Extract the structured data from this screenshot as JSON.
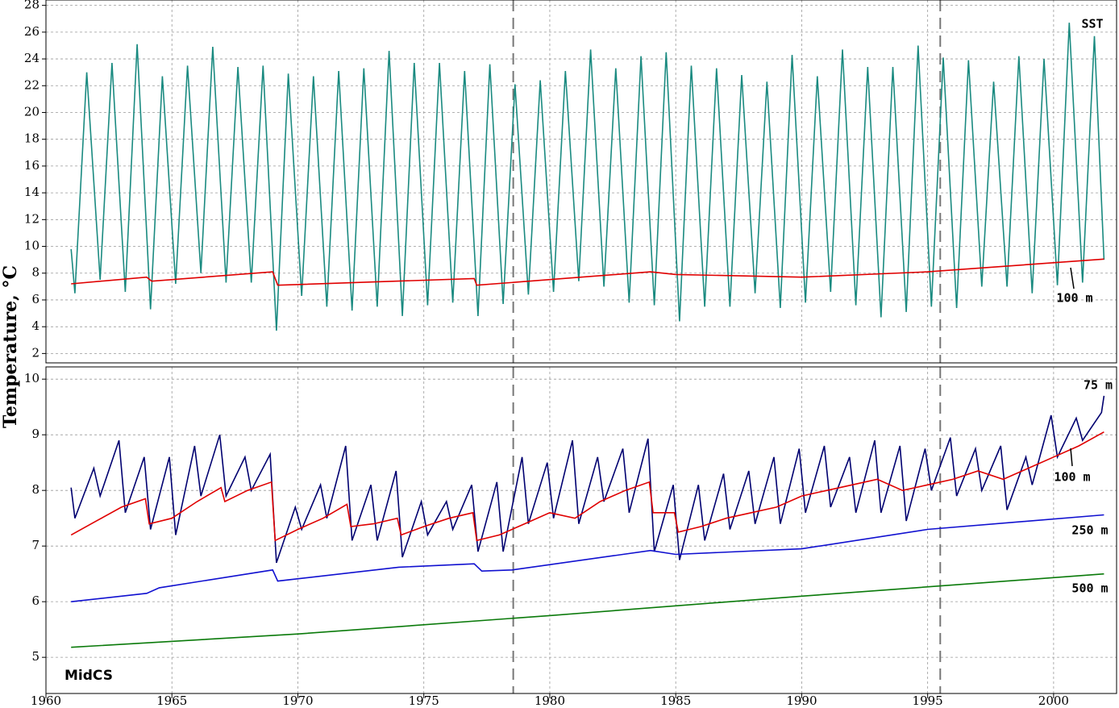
{
  "y_label": "Temperature, °C",
  "xlim": [
    1960,
    2002.5
  ],
  "xticks": [
    1960,
    1965,
    1970,
    1975,
    1980,
    1985,
    1990,
    1995,
    2000
  ],
  "reference_lines": [
    1978.55,
    1995.5
  ],
  "chart_data": [
    {
      "type": "line",
      "ylim": [
        1.3,
        28.4
      ],
      "yticks": [
        2,
        4,
        6,
        8,
        10,
        12,
        14,
        16,
        18,
        20,
        22,
        24,
        26,
        28
      ],
      "grid": true,
      "series": [
        {
          "name": "SST",
          "color": "#1a8a80",
          "x": [
            1961,
            1961.15,
            1961.62,
            1962.15,
            1962.62,
            1963.15,
            1963.62,
            1964.15,
            1964.62,
            1965.15,
            1965.62,
            1966.15,
            1966.62,
            1967.15,
            1967.62,
            1968.15,
            1968.62,
            1969.15,
            1969.62,
            1970.15,
            1970.62,
            1971.15,
            1971.62,
            1972.15,
            1972.62,
            1973.15,
            1973.62,
            1974.15,
            1974.62,
            1975.15,
            1975.62,
            1976.15,
            1976.62,
            1977.15,
            1977.62,
            1978.15,
            1978.62,
            1979.15,
            1979.62,
            1980.15,
            1980.62,
            1981.15,
            1981.62,
            1982.15,
            1982.62,
            1983.15,
            1983.62,
            1984.15,
            1984.62,
            1985.15,
            1985.62,
            1986.15,
            1986.62,
            1987.15,
            1987.62,
            1988.15,
            1988.62,
            1989.15,
            1989.62,
            1990.15,
            1990.62,
            1991.15,
            1991.62,
            1992.15,
            1992.62,
            1993.15,
            1993.62,
            1994.15,
            1994.62,
            1995.15,
            1995.62,
            1996.15,
            1996.62,
            1997.15,
            1997.62,
            1998.15,
            1998.62,
            1999.15,
            1999.62,
            2000.15,
            2000.62,
            2001.15,
            2001.62,
            2002
          ],
          "values": [
            9.8,
            6.5,
            23,
            7.5,
            23.7,
            6.6,
            25.1,
            5.3,
            22.7,
            7.2,
            23.5,
            8.0,
            24.9,
            7.3,
            23.4,
            7.3,
            23.5,
            3.7,
            22.9,
            6.3,
            22.7,
            5.5,
            23.1,
            5.2,
            23.3,
            5.5,
            24.6,
            4.8,
            23.7,
            5.6,
            23.7,
            5.8,
            23.1,
            4.8,
            23.6,
            5.7,
            22.1,
            6.4,
            22.4,
            6.6,
            23.1,
            7.4,
            24.7,
            7.0,
            23.3,
            5.8,
            24.2,
            5.6,
            24.5,
            4.4,
            23.5,
            5.5,
            23.3,
            5.5,
            22.8,
            6.5,
            22.3,
            5.4,
            24.3,
            5.8,
            22.7,
            6.6,
            24.7,
            5.6,
            23.4,
            4.7,
            23.4,
            5.1,
            25,
            5.5,
            24.1,
            5.4,
            23.9,
            7.0,
            22.3,
            7.0,
            24.2,
            6.5,
            24,
            7.1,
            26.7,
            7.3,
            25.7,
            9.0
          ]
        },
        {
          "name": "100 m",
          "color": "#e00000",
          "x": [
            1961,
            1964,
            1964.2,
            1969,
            1969.2,
            1977,
            1977.1,
            1984,
            1985,
            1990,
            1995,
            2002
          ],
          "values": [
            7.2,
            7.7,
            7.4,
            8.1,
            7.1,
            7.6,
            7.1,
            8.1,
            7.9,
            7.7,
            8.1,
            9.05
          ]
        }
      ]
    },
    {
      "type": "line",
      "ylim": [
        4.35,
        10.22
      ],
      "yticks": [
        5,
        6,
        7,
        8,
        9,
        10
      ],
      "grid": true,
      "annotation": "MidCS",
      "series": [
        {
          "name": "75 m",
          "color": "#000070",
          "x": [
            1961,
            1961.15,
            1961.9,
            1962.15,
            1962.9,
            1963.15,
            1963.9,
            1964.15,
            1964.9,
            1965.15,
            1965.9,
            1966.15,
            1966.9,
            1967.15,
            1967.9,
            1968.15,
            1968.9,
            1969.15,
            1969.9,
            1970.15,
            1970.9,
            1971.15,
            1971.9,
            1972.15,
            1972.9,
            1973.15,
            1973.9,
            1974.15,
            1974.9,
            1975.15,
            1975.9,
            1976.15,
            1976.9,
            1977.15,
            1977.9,
            1978.15,
            1978.9,
            1979.15,
            1979.9,
            1980.15,
            1980.9,
            1981.15,
            1981.9,
            1982.15,
            1982.9,
            1983.15,
            1983.9,
            1984.15,
            1984.9,
            1985.15,
            1985.9,
            1986.15,
            1986.9,
            1987.15,
            1987.9,
            1988.15,
            1988.9,
            1989.15,
            1989.9,
            1990.15,
            1990.9,
            1991.15,
            1991.9,
            1992.15,
            1992.9,
            1993.15,
            1993.9,
            1994.15,
            1994.9,
            1995.15,
            1995.9,
            1996.15,
            1996.9,
            1997.15,
            1997.9,
            1998.15,
            1998.9,
            1999.15,
            1999.9,
            2000.15,
            2000.9,
            2001.15,
            2001.9,
            2002
          ],
          "values": [
            8.05,
            7.5,
            8.4,
            7.9,
            8.9,
            7.6,
            8.6,
            7.3,
            8.6,
            7.2,
            8.8,
            7.9,
            9.0,
            7.9,
            8.6,
            8.0,
            8.65,
            6.7,
            7.7,
            7.3,
            8.1,
            7.5,
            8.8,
            7.1,
            8.1,
            7.1,
            8.35,
            6.8,
            7.8,
            7.2,
            7.8,
            7.3,
            8.1,
            6.9,
            8.15,
            6.9,
            8.6,
            7.4,
            8.5,
            7.5,
            8.9,
            7.4,
            8.6,
            7.8,
            8.75,
            7.6,
            8.93,
            6.9,
            8.1,
            6.75,
            8.1,
            7.1,
            8.3,
            7.3,
            8.35,
            7.4,
            8.6,
            7.4,
            8.75,
            7.6,
            8.8,
            7.7,
            8.6,
            7.6,
            8.9,
            7.6,
            8.8,
            7.45,
            8.75,
            8.0,
            8.95,
            7.9,
            8.75,
            8.0,
            8.8,
            7.65,
            8.6,
            8.1,
            9.35,
            8.6,
            9.3,
            8.9,
            9.4,
            9.7
          ]
        },
        {
          "name": "100 m",
          "color": "#e00000",
          "x": [
            1961,
            1962,
            1963,
            1963.95,
            1964.1,
            1965,
            1966,
            1966.95,
            1967.1,
            1968,
            1968.95,
            1969.1,
            1970,
            1971,
            1971.95,
            1972.1,
            1973,
            1973.95,
            1974.1,
            1975,
            1976,
            1976.95,
            1977.1,
            1978,
            1979,
            1980,
            1981,
            1982,
            1983,
            1983.95,
            1984.1,
            1984.95,
            1985.1,
            1986,
            1987,
            1988,
            1989,
            1990,
            1991,
            1992,
            1993,
            1994,
            1995,
            1996,
            1997,
            1998,
            1999,
            2000,
            2001,
            2002
          ],
          "values": [
            7.2,
            7.45,
            7.7,
            7.85,
            7.4,
            7.5,
            7.8,
            8.05,
            7.8,
            8.0,
            8.15,
            7.1,
            7.3,
            7.5,
            7.75,
            7.35,
            7.4,
            7.5,
            7.2,
            7.35,
            7.5,
            7.6,
            7.1,
            7.2,
            7.4,
            7.6,
            7.5,
            7.8,
            8.0,
            8.15,
            7.6,
            7.6,
            7.25,
            7.35,
            7.5,
            7.6,
            7.7,
            7.9,
            8.0,
            8.1,
            8.2,
            8.0,
            8.1,
            8.2,
            8.35,
            8.2,
            8.4,
            8.6,
            8.8,
            9.05
          ]
        },
        {
          "name": "250 m",
          "color": "#1010d0",
          "x": [
            1961,
            1964,
            1964.5,
            1969,
            1969.2,
            1974,
            1977,
            1977.3,
            1978.5,
            1984,
            1985,
            1990,
            1995,
            2002
          ],
          "values": [
            6.0,
            6.15,
            6.25,
            6.57,
            6.37,
            6.62,
            6.68,
            6.55,
            6.57,
            6.92,
            6.85,
            6.95,
            7.3,
            7.56
          ]
        },
        {
          "name": "500 m",
          "color": "#0a7a0a",
          "x": [
            1961,
            1970,
            1980,
            1990,
            2002
          ],
          "values": [
            5.18,
            5.42,
            5.75,
            6.1,
            6.5
          ]
        }
      ]
    }
  ]
}
